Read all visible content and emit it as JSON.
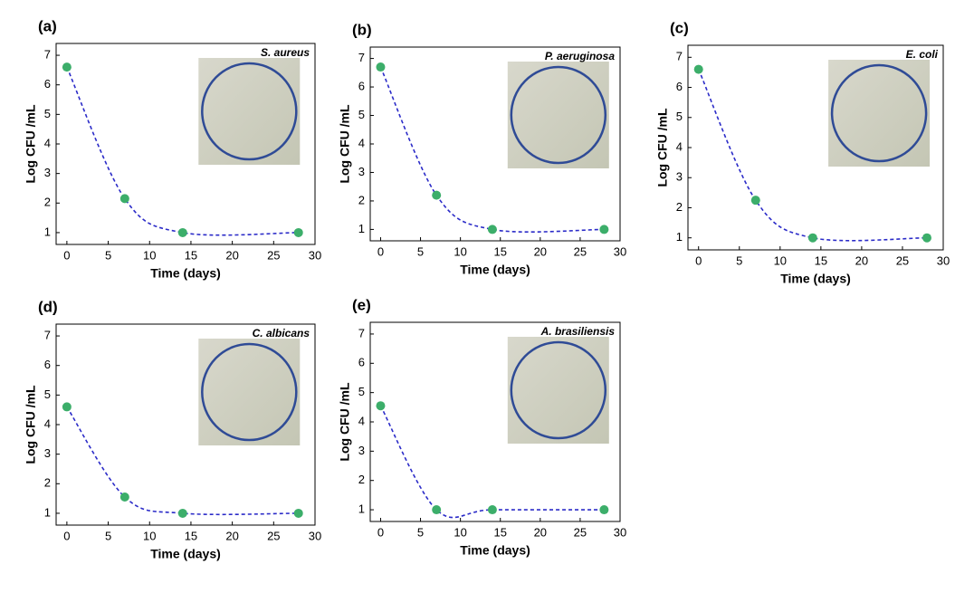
{
  "chart_data": [
    {
      "type": "line",
      "label": "(a)",
      "title": "S. aureus",
      "xlabel": "Time (days)",
      "ylabel": "Log CFU /mL",
      "x": [
        0,
        7,
        14,
        28
      ],
      "values": [
        6.6,
        2.15,
        1.0,
        1.0
      ],
      "color": "#2b2bc8",
      "marker_color": "#3cae6a",
      "xlim": [
        -1.3,
        30
      ],
      "ylim": [
        0.6,
        7.4
      ],
      "xticks": [
        0,
        5,
        10,
        15,
        20,
        25,
        30
      ],
      "yticks": [
        1,
        2,
        3,
        4,
        5,
        6,
        7
      ]
    },
    {
      "type": "line",
      "label": "(b)",
      "title": "P. aeruginosa",
      "xlabel": "Time (days)",
      "ylabel": "Log CFU /mL",
      "x": [
        0,
        7,
        14,
        28
      ],
      "values": [
        6.7,
        2.2,
        1.0,
        1.0
      ],
      "color": "#2b2bc8",
      "marker_color": "#3cae6a",
      "xlim": [
        -1.3,
        30
      ],
      "ylim": [
        0.6,
        7.4
      ],
      "xticks": [
        0,
        5,
        10,
        15,
        20,
        25,
        30
      ],
      "yticks": [
        1,
        2,
        3,
        4,
        5,
        6,
        7
      ]
    },
    {
      "type": "line",
      "label": "(c)",
      "title": "E. coli",
      "xlabel": "Time (days)",
      "ylabel": "Log CFU /mL",
      "x": [
        0,
        7,
        14,
        28
      ],
      "values": [
        6.6,
        2.25,
        1.0,
        1.0
      ],
      "color": "#2b2bc8",
      "marker_color": "#3cae6a",
      "xlim": [
        -1.3,
        30
      ],
      "ylim": [
        0.6,
        7.4
      ],
      "xticks": [
        0,
        5,
        10,
        15,
        20,
        25,
        30
      ],
      "yticks": [
        1,
        2,
        3,
        4,
        5,
        6,
        7
      ]
    },
    {
      "type": "line",
      "label": "(d)",
      "title": "C. albicans",
      "xlabel": "Time (days)",
      "ylabel": "Log CFU /mL",
      "x": [
        0,
        7,
        14,
        28
      ],
      "values": [
        4.6,
        1.55,
        1.0,
        1.0
      ],
      "color": "#2b2bc8",
      "marker_color": "#3cae6a",
      "xlim": [
        -1.3,
        30
      ],
      "ylim": [
        0.6,
        7.4
      ],
      "xticks": [
        0,
        5,
        10,
        15,
        20,
        25,
        30
      ],
      "yticks": [
        1,
        2,
        3,
        4,
        5,
        6,
        7
      ]
    },
    {
      "type": "line",
      "label": "(e)",
      "title": "A. brasiliensis",
      "xlabel": "Time (days)",
      "ylabel": "Log CFU /mL",
      "x": [
        0,
        7,
        14,
        28
      ],
      "values": [
        4.55,
        1.0,
        1.0,
        1.0
      ],
      "color": "#2b2bc8",
      "marker_color": "#3cae6a",
      "xlim": [
        -1.3,
        30
      ],
      "ylim": [
        0.6,
        7.4
      ],
      "xticks": [
        0,
        5,
        10,
        15,
        20,
        25,
        30
      ],
      "yticks": [
        1,
        2,
        3,
        4,
        5,
        6,
        7
      ]
    }
  ]
}
